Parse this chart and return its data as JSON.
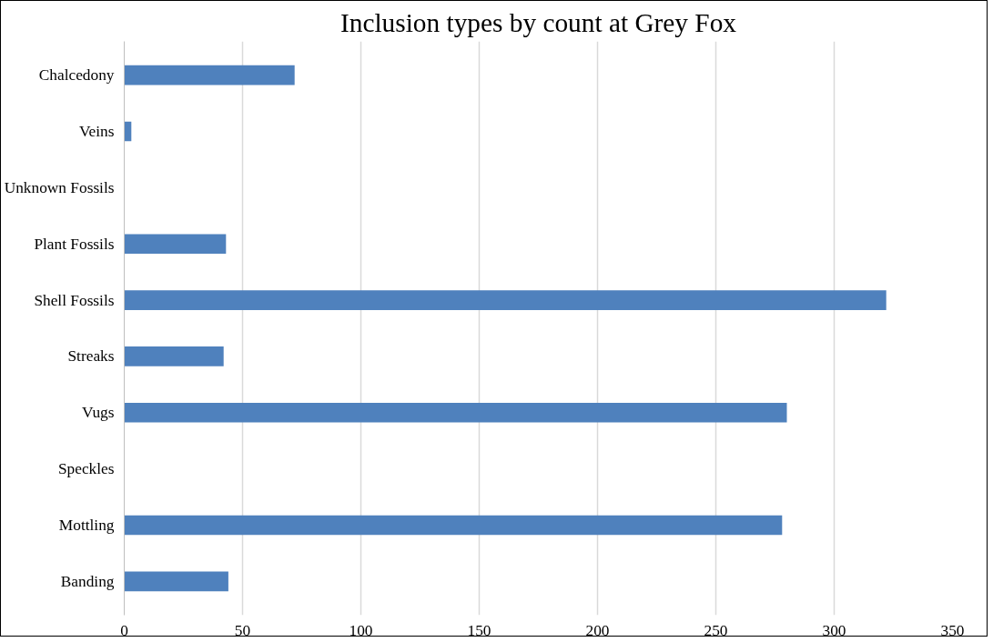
{
  "chart_data": {
    "type": "bar",
    "orientation": "horizontal",
    "title": "Inclusion types by count at Grey Fox",
    "categories": [
      "Chalcedony",
      "Veins",
      "Unknown Fossils",
      "Plant Fossils",
      "Shell Fossils",
      "Streaks",
      "Vugs",
      "Speckles",
      "Mottling",
      "Banding"
    ],
    "values": [
      72,
      3,
      0,
      43,
      322,
      42,
      280,
      0,
      278,
      44
    ],
    "color": "#4f81bd",
    "xlim": [
      0,
      350
    ],
    "xticks": [
      0,
      50,
      100,
      150,
      200,
      250,
      300,
      350
    ],
    "grid": "x"
  }
}
